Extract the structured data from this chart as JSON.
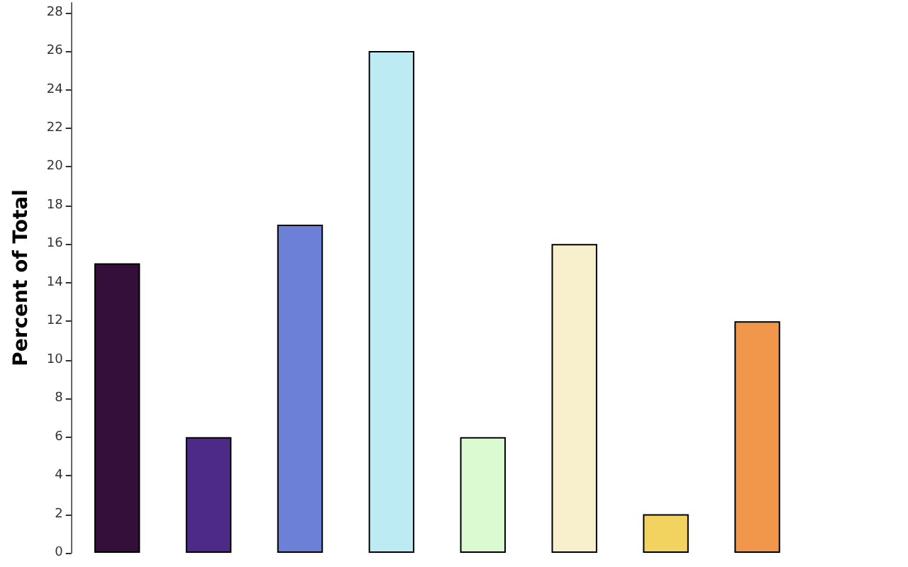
{
  "chart_data": {
    "type": "bar",
    "ylabel": "Percent of Total",
    "categories": [
      null,
      null,
      null,
      null,
      null,
      null,
      null,
      null
    ],
    "values": [
      15,
      6,
      17,
      26,
      6,
      16,
      2,
      12
    ],
    "colors": [
      "#330f3a",
      "#4c2a86",
      "#6b80d6",
      "#bdebf3",
      "#dcfad2",
      "#f8f0cc",
      "#f3d35f",
      "#f0974c"
    ],
    "ylim": [
      0,
      28.5
    ],
    "yticks": [
      0,
      2,
      4,
      6,
      8,
      10,
      12,
      14,
      16,
      18,
      20,
      22,
      24,
      26,
      28
    ],
    "grid": false
  }
}
